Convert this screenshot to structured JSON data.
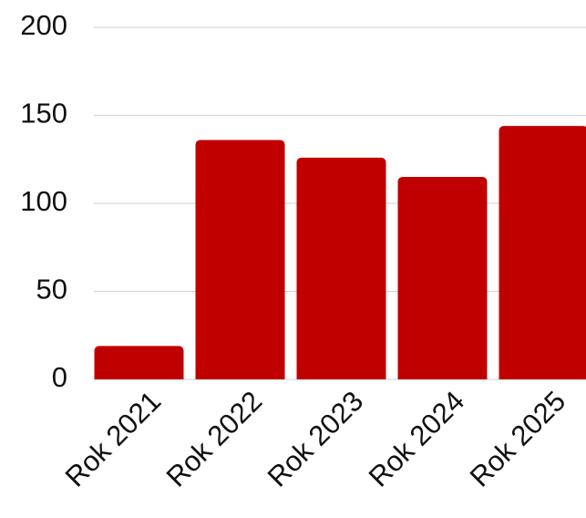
{
  "chart_data": {
    "type": "bar",
    "categories": [
      "Rok 2021",
      "Rok 2022",
      "Rok 2023",
      "Rok 2024",
      "Rok 2025"
    ],
    "values": [
      19,
      136,
      126,
      115,
      144
    ],
    "color": "#c00000",
    "ylim": [
      0,
      200
    ],
    "yticks": [
      0,
      50,
      100,
      150,
      200
    ],
    "grid": true
  }
}
